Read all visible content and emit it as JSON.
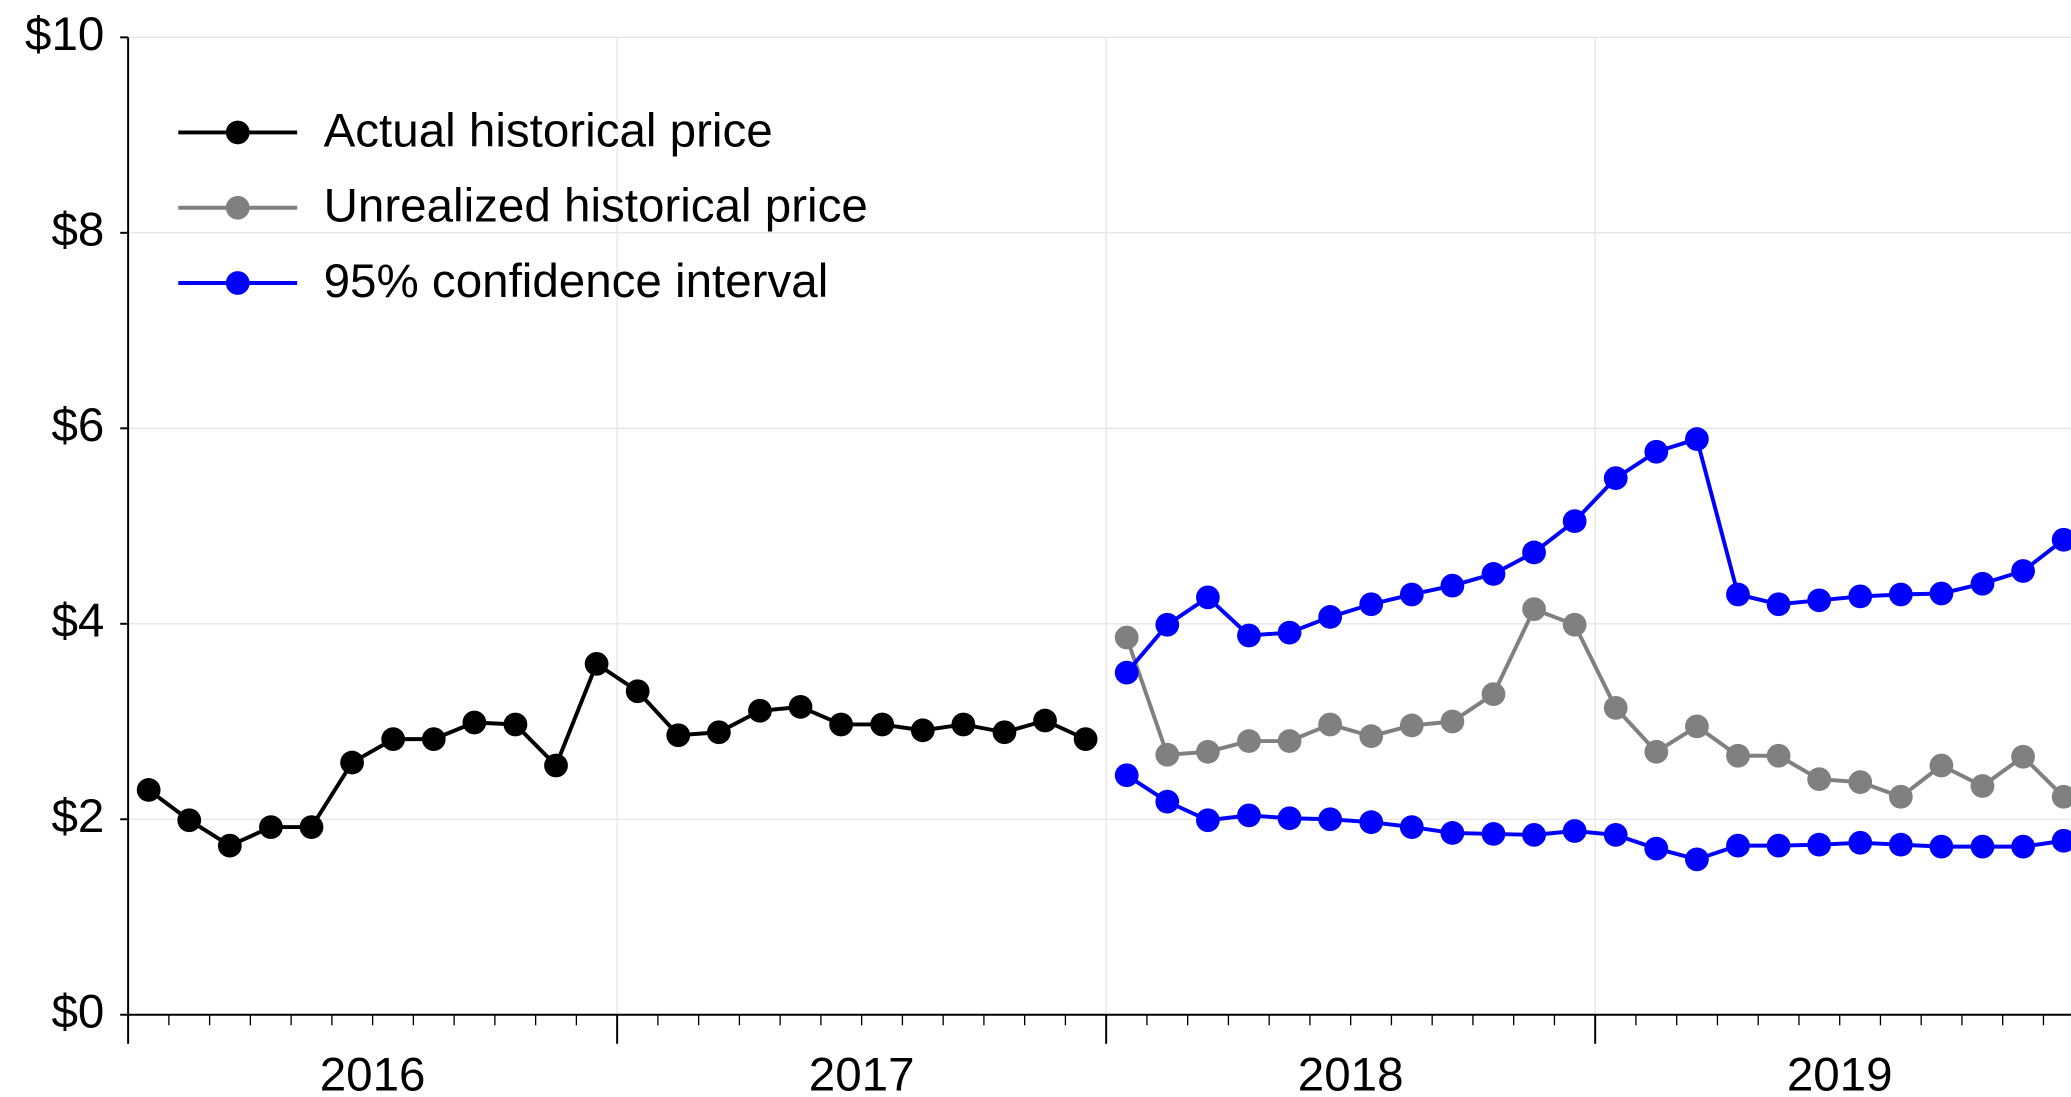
{
  "chart_data": {
    "type": "line",
    "x": [
      2016.042,
      2016.125,
      2016.208,
      2016.292,
      2016.375,
      2016.458,
      2016.542,
      2016.625,
      2016.708,
      2016.792,
      2016.875,
      2016.958,
      2017.042,
      2017.125,
      2017.208,
      2017.292,
      2017.375,
      2017.458,
      2017.542,
      2017.625,
      2017.708,
      2017.792,
      2017.875,
      2017.958,
      2018.042,
      2018.125,
      2018.208,
      2018.292,
      2018.375,
      2018.458,
      2018.542,
      2018.625,
      2018.708,
      2018.792,
      2018.875,
      2018.958,
      2019.042,
      2019.125,
      2019.208,
      2019.292,
      2019.375,
      2019.458,
      2019.542,
      2019.625,
      2019.708,
      2019.792,
      2019.875,
      2019.958
    ],
    "xlim": [
      2016,
      2020
    ],
    "xticks": [
      2016,
      2017,
      2018,
      2019,
      2020
    ],
    "xlabels": [
      {
        "value": 2016.5,
        "label": "2016"
      },
      {
        "value": 2017.5,
        "label": "2017"
      },
      {
        "value": 2018.5,
        "label": "2018"
      },
      {
        "value": 2019.5,
        "label": "2019"
      }
    ],
    "ylim": [
      0,
      10
    ],
    "yticks": [
      {
        "value": 0,
        "label": "$0"
      },
      {
        "value": 2,
        "label": "$2"
      },
      {
        "value": 4,
        "label": "$4"
      },
      {
        "value": 6,
        "label": "$6"
      },
      {
        "value": 8,
        "label": "$8"
      },
      {
        "value": 10,
        "label": "$10"
      }
    ],
    "grid": true,
    "legend": "upper left",
    "series": [
      {
        "name": "Actual historical price",
        "color": "#000000",
        "values": [
          2.3,
          1.99,
          1.73,
          1.92,
          1.92,
          2.58,
          2.82,
          2.82,
          2.99,
          2.97,
          2.55,
          3.59,
          3.31,
          2.86,
          2.89,
          3.11,
          3.15,
          2.97,
          2.97,
          2.91,
          2.97,
          2.89,
          3.01,
          2.82,
          null,
          null,
          null,
          null,
          null,
          null,
          null,
          null,
          null,
          null,
          null,
          null,
          null,
          null,
          null,
          null,
          null,
          null,
          null,
          null,
          null,
          null,
          null,
          null
        ]
      },
      {
        "name": "Unrealized historical price",
        "color": "#808080",
        "values": [
          null,
          null,
          null,
          null,
          null,
          null,
          null,
          null,
          null,
          null,
          null,
          null,
          null,
          null,
          null,
          null,
          null,
          null,
          null,
          null,
          null,
          null,
          null,
          null,
          3.86,
          2.66,
          2.69,
          2.8,
          2.8,
          2.97,
          2.85,
          2.96,
          3.0,
          3.28,
          4.15,
          3.99,
          3.14,
          2.69,
          2.95,
          2.65,
          2.65,
          2.41,
          2.38,
          2.23,
          2.55,
          2.34,
          2.64,
          2.23
        ]
      },
      {
        "name": "95% confidence interval",
        "color": "#0000ff",
        "upper": [
          null,
          null,
          null,
          null,
          null,
          null,
          null,
          null,
          null,
          null,
          null,
          null,
          null,
          null,
          null,
          null,
          null,
          null,
          null,
          null,
          null,
          null,
          null,
          null,
          3.5,
          3.99,
          4.27,
          3.88,
          3.91,
          4.07,
          4.2,
          4.3,
          4.39,
          4.51,
          4.73,
          5.05,
          5.49,
          5.76,
          5.89,
          4.3,
          4.2,
          4.24,
          4.28,
          4.3,
          4.31,
          4.41,
          4.54,
          4.86
        ],
        "lower": [
          null,
          null,
          null,
          null,
          null,
          null,
          null,
          null,
          null,
          null,
          null,
          null,
          null,
          null,
          null,
          null,
          null,
          null,
          null,
          null,
          null,
          null,
          null,
          null,
          2.45,
          2.18,
          1.99,
          2.04,
          2.01,
          2.0,
          1.97,
          1.92,
          1.86,
          1.85,
          1.84,
          1.88,
          1.84,
          1.7,
          1.59,
          1.73,
          1.73,
          1.74,
          1.76,
          1.74,
          1.72,
          1.72,
          1.72,
          1.78
        ]
      }
    ]
  }
}
